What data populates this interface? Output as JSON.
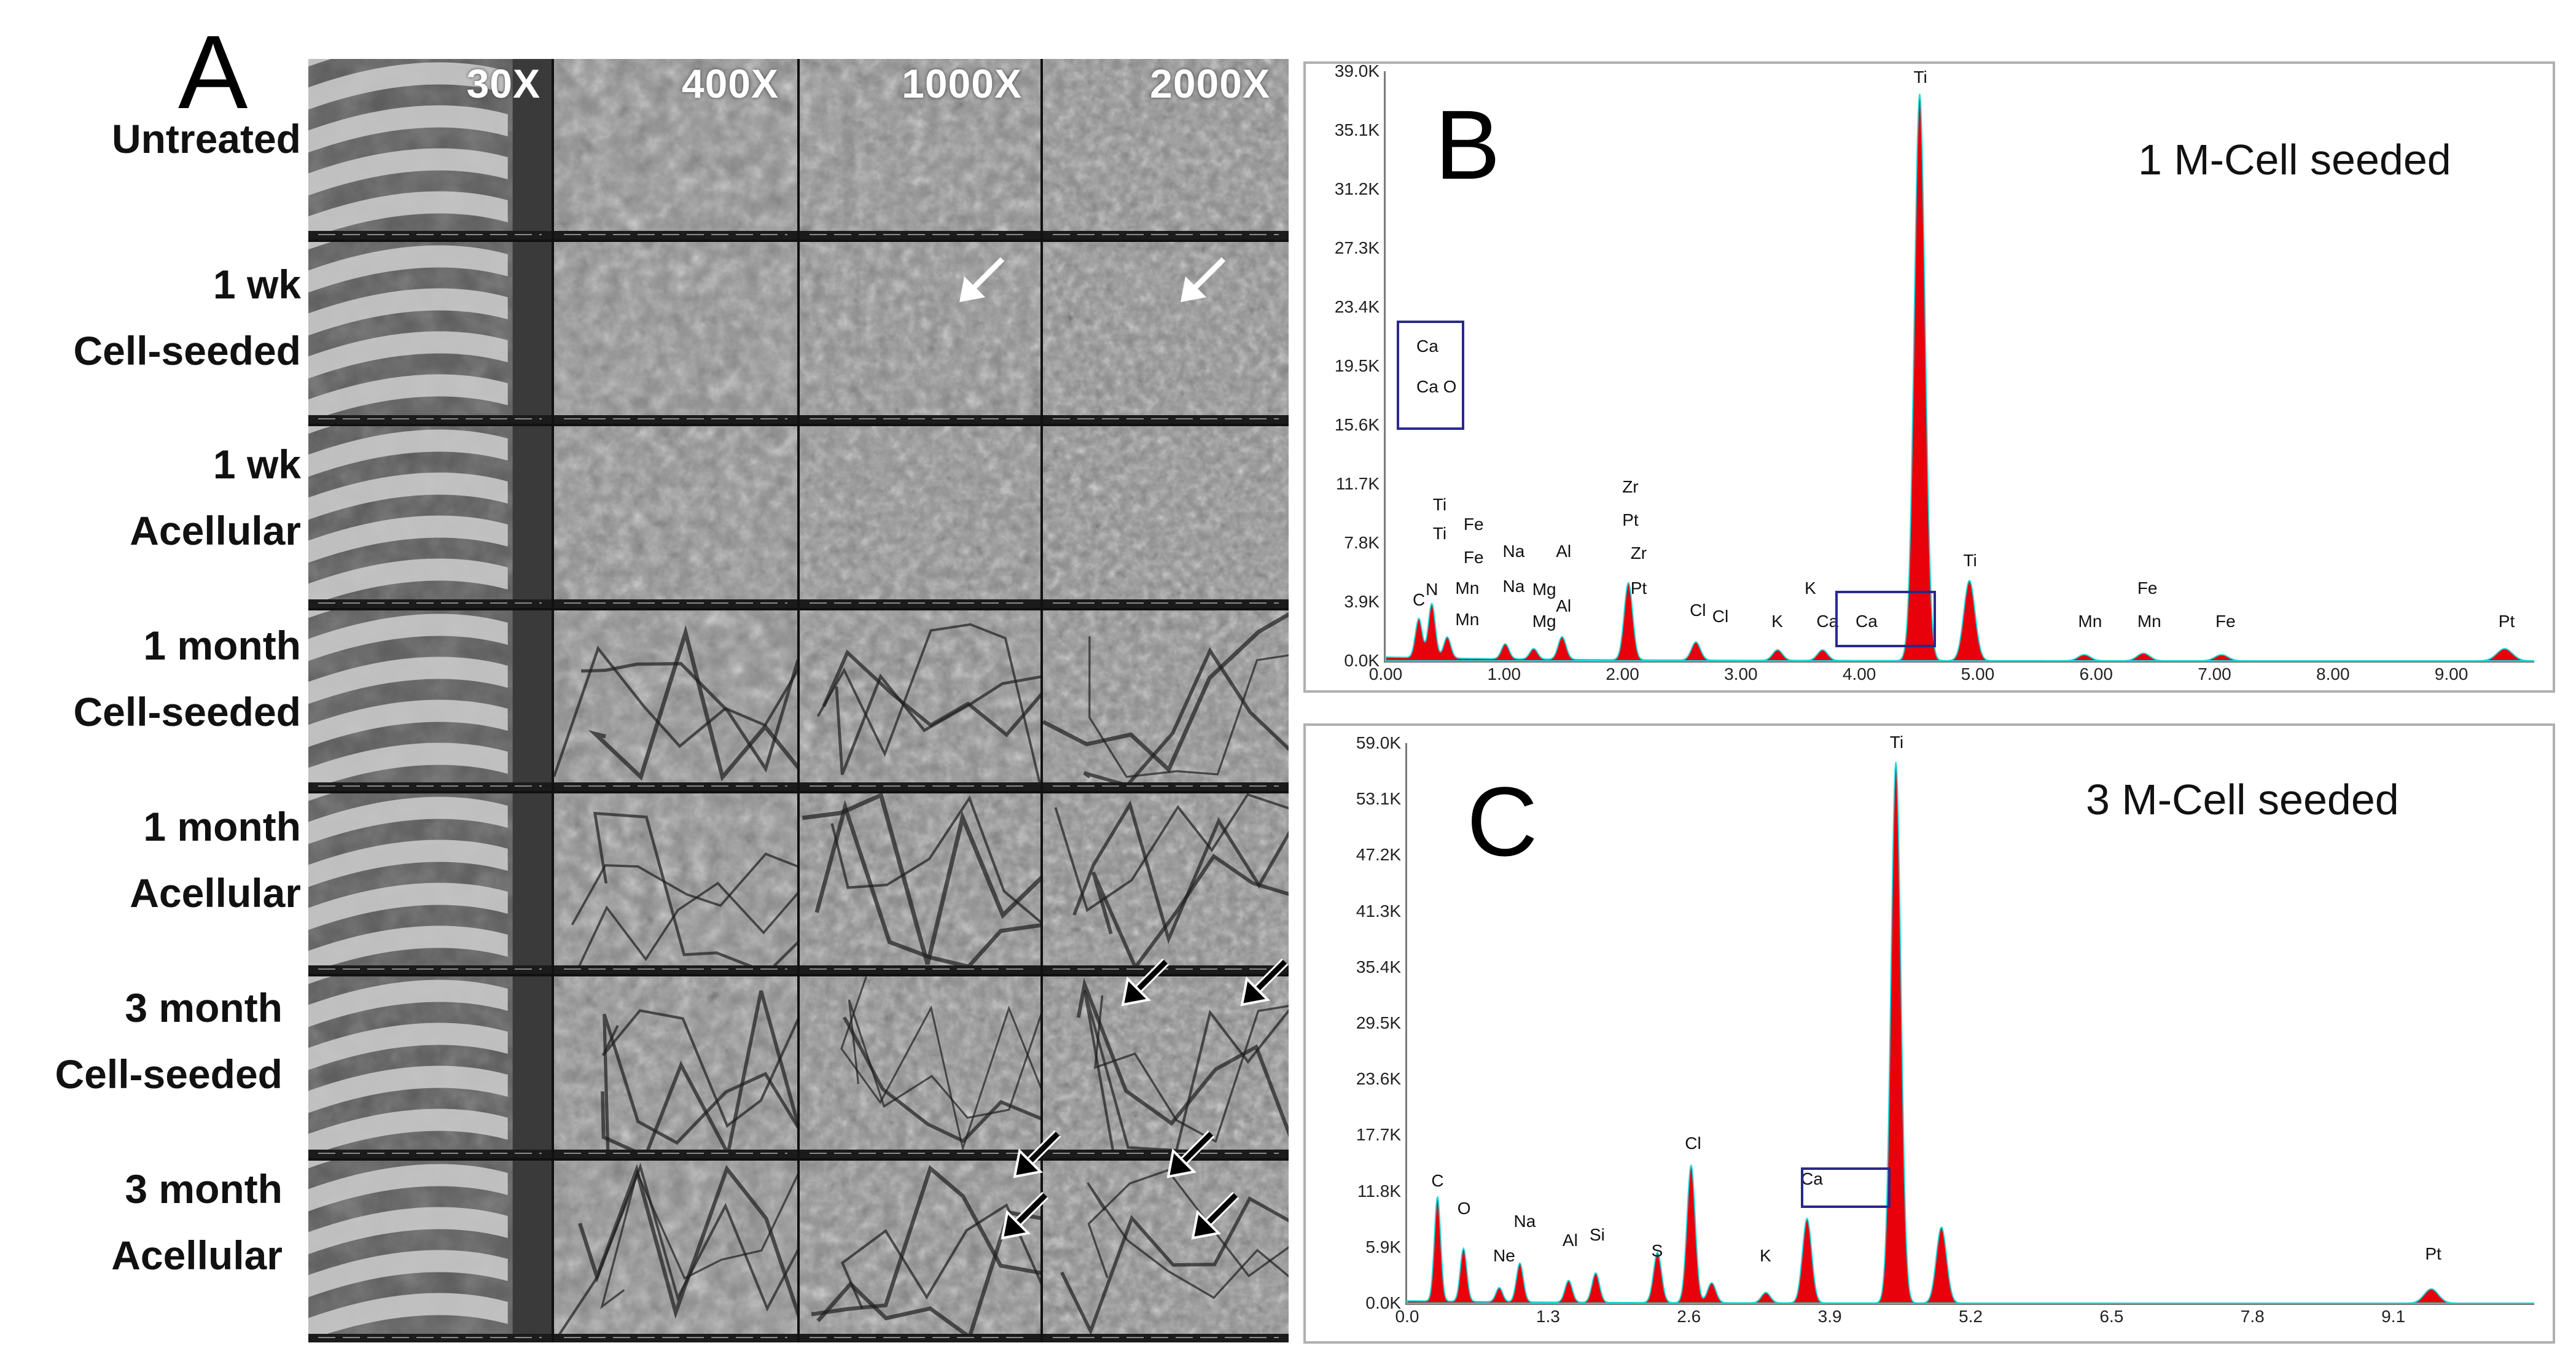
{
  "panel_a": {
    "letter": "A",
    "magnifications": [
      "30X",
      "400X",
      "1000X",
      "2000X"
    ],
    "rows": [
      {
        "line1": "Untreated",
        "line2": ""
      },
      {
        "line1": "1 wk",
        "line2": "Cell-seeded"
      },
      {
        "line1": "1 wk",
        "line2": "Acellular"
      },
      {
        "line1": "1 month",
        "line2": "Cell-seeded"
      },
      {
        "line1": "1 month",
        "line2": "Acellular"
      },
      {
        "line1": "3 month",
        "line2": "Cell-seeded"
      },
      {
        "line1": "3 month",
        "line2": "Acellular"
      }
    ]
  },
  "chart_data": [
    {
      "type": "area",
      "panel": "B",
      "title": "1 M-Cell seeded",
      "ylim": [
        0,
        39000
      ],
      "yticks": [
        "0.0K",
        "3.9K",
        "7.8K",
        "11.7K",
        "15.6K",
        "19.5K",
        "23.4K",
        "27.3K",
        "31.2K",
        "35.1K",
        "39.0K"
      ],
      "xlim": [
        0,
        9.7
      ],
      "xticks": [
        "0.00",
        "1.00",
        "2.00",
        "3.00",
        "4.00",
        "5.00",
        "6.00",
        "7.00",
        "8.00",
        "9.00"
      ],
      "x": [
        0.28,
        0.39,
        0.52,
        1.01,
        1.25,
        1.49,
        2.05,
        2.62,
        3.31,
        3.69,
        4.51,
        4.93,
        5.9,
        6.4,
        7.06,
        9.45
      ],
      "y": [
        2600,
        3600,
        1400,
        1000,
        700,
        1500,
        5100,
        1200,
        700,
        700,
        37500,
        5300,
        400,
        500,
        400,
        800
      ],
      "peak_labels": [
        {
          "text": "C",
          "x": 0.28,
          "y": 3200
        },
        {
          "text": "N",
          "x": 0.39,
          "y": 3900
        },
        {
          "text": "Ti",
          "x": 0.45,
          "y": 9500
        },
        {
          "text": "Ti",
          "x": 0.45,
          "y": 7600
        },
        {
          "text": "Fe",
          "x": 0.71,
          "y": 8200
        },
        {
          "text": "Fe",
          "x": 0.71,
          "y": 6000
        },
        {
          "text": "Mn",
          "x": 0.64,
          "y": 4000
        },
        {
          "text": "Mn",
          "x": 0.64,
          "y": 1900
        },
        {
          "text": "Na",
          "x": 1.04,
          "y": 6400
        },
        {
          "text": "Na",
          "x": 1.04,
          "y": 4100
        },
        {
          "text": "Mg",
          "x": 1.29,
          "y": 3900
        },
        {
          "text": "Mg",
          "x": 1.29,
          "y": 1800
        },
        {
          "text": "Al",
          "x": 1.49,
          "y": 6400
        },
        {
          "text": "Al",
          "x": 1.49,
          "y": 2800
        },
        {
          "text": "Zr",
          "x": 2.05,
          "y": 10700
        },
        {
          "text": "Pt",
          "x": 2.05,
          "y": 8500
        },
        {
          "text": "Zr",
          "x": 2.12,
          "y": 6300
        },
        {
          "text": "Pt",
          "x": 2.12,
          "y": 4000
        },
        {
          "text": "Cl",
          "x": 2.62,
          "y": 2500
        },
        {
          "text": "Cl",
          "x": 2.81,
          "y": 2100
        },
        {
          "text": "K",
          "x": 3.31,
          "y": 1800
        },
        {
          "text": "K",
          "x": 3.59,
          "y": 4000
        },
        {
          "text": "Ca",
          "x": 3.69,
          "y": 1800
        },
        {
          "text": "Ca",
          "x": 4.02,
          "y": 1800
        },
        {
          "text": "Ti",
          "x": 4.51,
          "y": 37800
        },
        {
          "text": "Ti",
          "x": 4.93,
          "y": 5800
        },
        {
          "text": "Fe",
          "x": 6.4,
          "y": 4000
        },
        {
          "text": "Mn",
          "x": 5.9,
          "y": 1800
        },
        {
          "text": "Mn",
          "x": 6.4,
          "y": 1800
        },
        {
          "text": "Fe",
          "x": 7.06,
          "y": 1800
        },
        {
          "text": "Pt",
          "x": 9.45,
          "y": 1800
        }
      ],
      "inset_labels": [
        "Ca",
        "Ca O"
      ]
    },
    {
      "type": "area",
      "panel": "C",
      "title": "3 M-Cell seeded",
      "ylim": [
        0,
        59000
      ],
      "yticks": [
        "0.0K",
        "5.9K",
        "11.8K",
        "17.7K",
        "23.6K",
        "29.5K",
        "35.4K",
        "41.3K",
        "47.2K",
        "53.1K",
        "59.0K"
      ],
      "xlim": [
        0,
        10.4
      ],
      "xticks": [
        "0.0",
        "1.3",
        "2.6",
        "3.9",
        "5.2",
        "6.5",
        "7.8",
        "9.1"
      ],
      "x": [
        0.28,
        0.52,
        0.85,
        1.04,
        1.49,
        1.74,
        2.31,
        2.62,
        2.81,
        3.31,
        3.69,
        4.51,
        4.93,
        9.45
      ],
      "y": [
        11000,
        5600,
        1500,
        4100,
        2300,
        3100,
        5300,
        14500,
        2100,
        1100,
        8900,
        57000,
        8000,
        1500
      ],
      "peak_labels": [
        {
          "text": "C",
          "x": 0.28,
          "y": 11600
        },
        {
          "text": "O",
          "x": 0.52,
          "y": 8700
        },
        {
          "text": "Ne",
          "x": 0.85,
          "y": 3700
        },
        {
          "text": "Na",
          "x": 1.04,
          "y": 7300
        },
        {
          "text": "Al",
          "x": 1.49,
          "y": 5300
        },
        {
          "text": "Si",
          "x": 1.74,
          "y": 5900
        },
        {
          "text": "S",
          "x": 2.31,
          "y": 4200
        },
        {
          "text": "Cl",
          "x": 2.62,
          "y": 15500
        },
        {
          "text": "K",
          "x": 3.31,
          "y": 3700
        },
        {
          "text": "Ca",
          "x": 3.69,
          "y": 11800
        },
        {
          "text": "Ti",
          "x": 4.51,
          "y": 57800
        },
        {
          "text": "Pt",
          "x": 9.45,
          "y": 3900
        }
      ]
    }
  ]
}
